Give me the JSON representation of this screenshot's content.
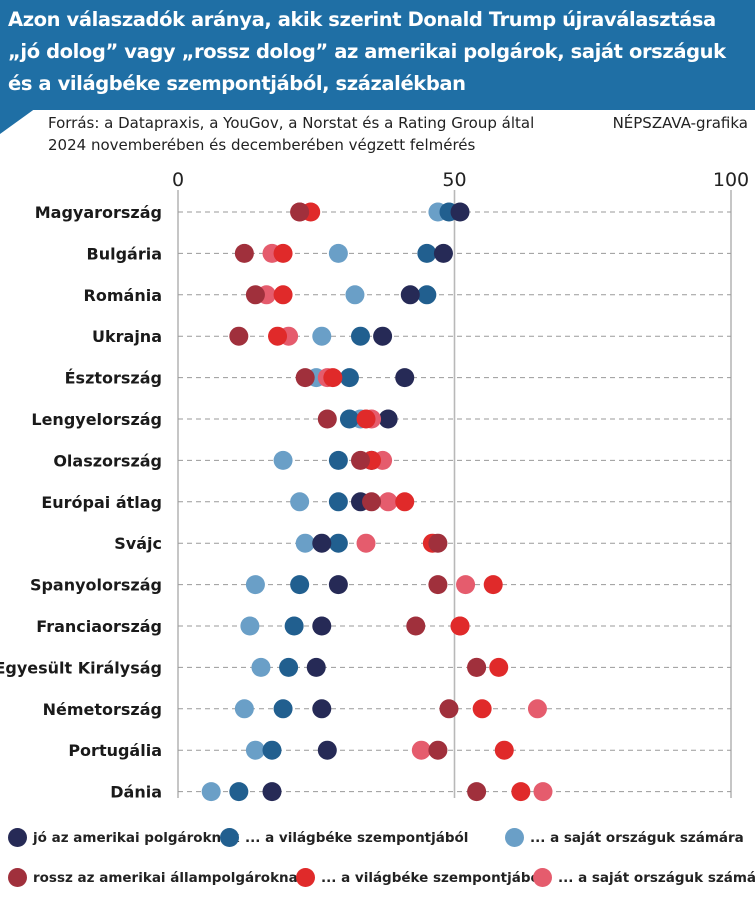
{
  "chart_data": {
    "type": "scatter",
    "title": "Azon válaszadók aránya, akik szerint Donald Trump újraválasztása\n„jó dolog” vagy „rossz dolog” az amerikai polgárok, saját országuk\nés a világbéke szempontjából, százalékban",
    "subtitle": "Forrás: a Datapraxis, a YouGov, a Norstat és a Rating Group által\n2024 novemberében és decemberében végzett felmérés",
    "credit": "NÉPSZAVA-grafika",
    "xlim": [
      0,
      100
    ],
    "xticks": [
      0,
      50,
      100
    ],
    "grid": true,
    "legend_position": "bottom",
    "categories": [
      "Magyarország",
      "Bulgária",
      "Románia",
      "Ukrajna",
      "Észtország",
      "Lengyelország",
      "Olaszország",
      "Európai átlag",
      "Svájc",
      "Spanyolország",
      "Franciaország",
      "Egyesült Királyság",
      "Németország",
      "Portugália",
      "Dánia"
    ],
    "series": [
      {
        "name": "jó az amerikai polgároknak",
        "color": "#262a56",
        "values": [
          51,
          48,
          42,
          37,
          41,
          38,
          35,
          33,
          26,
          29,
          26,
          25,
          26,
          27,
          17
        ]
      },
      {
        "name": "... a világbéke szempontjából",
        "color": "#215f8f",
        "values": [
          49,
          45,
          45,
          33,
          31,
          31,
          29,
          29,
          29,
          22,
          21,
          20,
          19,
          17,
          11
        ]
      },
      {
        "name": "... a saját országuk számára",
        "color": "#6a9fc7",
        "values": [
          47,
          29,
          32,
          26,
          25,
          33,
          19,
          22,
          23,
          14,
          13,
          15,
          12,
          14,
          6
        ]
      },
      {
        "name": "rossz az amerikai állampolgároknak",
        "color": "#a0303c",
        "values": [
          22,
          12,
          14,
          11,
          23,
          27,
          33,
          35,
          47,
          47,
          43,
          54,
          49,
          47,
          54
        ]
      },
      {
        "name": "... a világbéke szempontjából",
        "color": "#e02a2a",
        "values": [
          24,
          19,
          19,
          18,
          28,
          34,
          35,
          41,
          46,
          57,
          51,
          58,
          55,
          59,
          62
        ]
      },
      {
        "name": "... a saját országuk számára",
        "color": "#e55c6d",
        "values": [
          22,
          17,
          16,
          20,
          27,
          35,
          37,
          38,
          34,
          52,
          51,
          54,
          65,
          44,
          66
        ]
      }
    ]
  }
}
